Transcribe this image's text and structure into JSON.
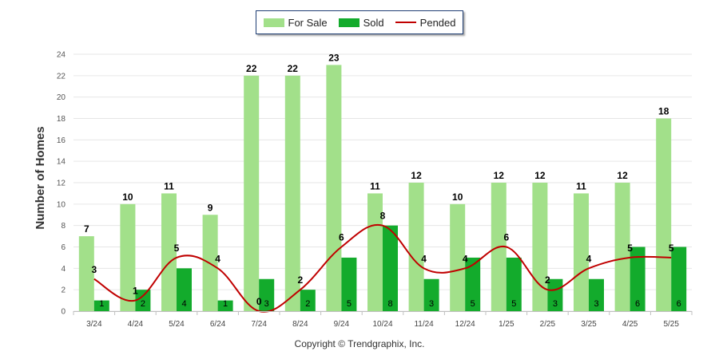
{
  "chart_data": {
    "type": "bar",
    "title": "",
    "xlabel": "",
    "ylabel": "Number of Homes",
    "ylim": [
      0,
      24
    ],
    "yticks": [
      0,
      2,
      4,
      6,
      8,
      10,
      12,
      14,
      16,
      18,
      20,
      22,
      24
    ],
    "grid": true,
    "legend_position": "top-center",
    "categories": [
      "3/24",
      "4/24",
      "5/24",
      "6/24",
      "7/24",
      "8/24",
      "9/24",
      "10/24",
      "11/24",
      "12/24",
      "1/25",
      "2/25",
      "3/25",
      "4/25",
      "5/25"
    ],
    "series": [
      {
        "name": "For Sale",
        "kind": "bar",
        "color": "#a2e08a",
        "values": [
          7,
          10,
          11,
          9,
          22,
          22,
          23,
          11,
          12,
          10,
          12,
          12,
          11,
          12,
          18
        ]
      },
      {
        "name": "Sold",
        "kind": "bar",
        "color": "#13ab2c",
        "values": [
          1,
          2,
          4,
          1,
          3,
          2,
          5,
          8,
          3,
          5,
          5,
          3,
          3,
          6,
          6
        ]
      },
      {
        "name": "Pended",
        "kind": "line",
        "color": "#c00000",
        "values": [
          3,
          1,
          5,
          4,
          0,
          2,
          6,
          8,
          4,
          4,
          6,
          2,
          4,
          5,
          5
        ]
      }
    ]
  },
  "copyright": "Copyright © Trendgraphix, Inc."
}
